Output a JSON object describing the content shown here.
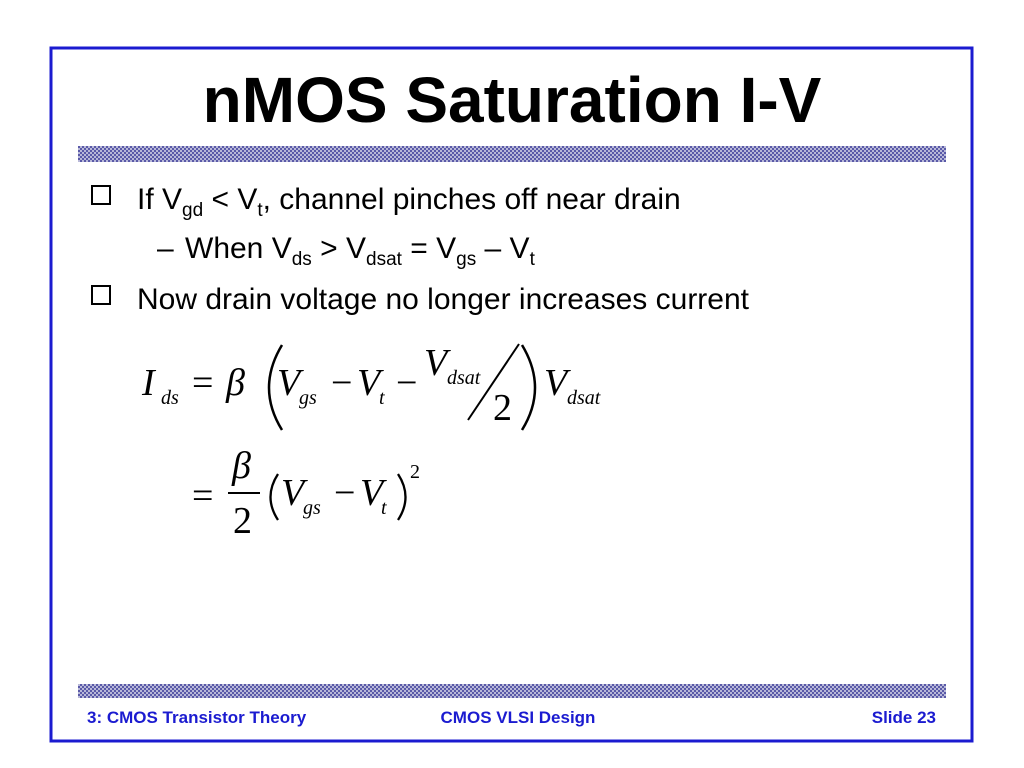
{
  "title": "nMOS Saturation I-V",
  "bullets": [
    {
      "parts": [
        "If V",
        "gd",
        " < V",
        "t",
        ", channel pinches off near drain"
      ]
    },
    {
      "parts": [
        "–",
        "When V",
        "ds",
        " > V",
        "dsat",
        " = V",
        "gs",
        " – V",
        "t"
      ]
    },
    {
      "parts": [
        "Now drain voltage no longer increases current"
      ]
    }
  ],
  "equation_1": [
    "I",
    "ds",
    "=",
    "β",
    "V",
    "gs",
    "−",
    "V",
    "t",
    "−",
    "V",
    "dsat",
    "2",
    "V",
    "dsat"
  ],
  "equation_2": [
    "=",
    "β",
    "2",
    "V",
    "gs",
    "−",
    "V",
    "t",
    "2"
  ],
  "footer": {
    "left": "3: CMOS Transistor Theory",
    "center": "CMOS VLSI Design",
    "right": "Slide 23"
  }
}
